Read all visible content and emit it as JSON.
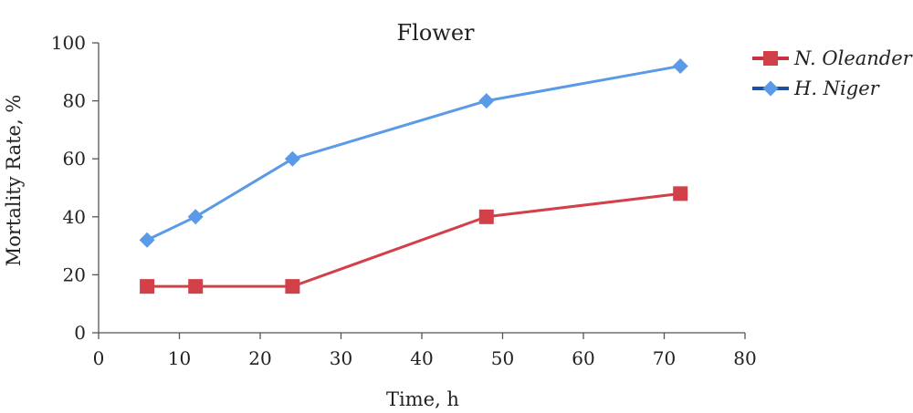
{
  "chart_data": {
    "type": "line",
    "title": "Flower",
    "xlabel": "Time, h",
    "ylabel": "Mortality Rate, %",
    "xlim": [
      0,
      80
    ],
    "ylim": [
      0,
      100
    ],
    "xticks": [
      "0",
      "10",
      "20",
      "30",
      "40",
      "50",
      "60",
      "70",
      "80"
    ],
    "yticks": [
      "0",
      "20",
      "40",
      "60",
      "80",
      "100"
    ],
    "grid": false,
    "legend_position": "top-right",
    "series": [
      {
        "name": "N. Oleander",
        "color": "#d2404a",
        "marker": "square",
        "x": [
          6,
          12,
          24,
          48,
          72
        ],
        "y": [
          16,
          16,
          16,
          40,
          48
        ]
      },
      {
        "name": "H. Niger",
        "color": "#5a9ae6",
        "marker": "diamond",
        "x": [
          6,
          12,
          24,
          48,
          72
        ],
        "y": [
          32,
          40,
          60,
          80,
          92
        ]
      }
    ]
  }
}
